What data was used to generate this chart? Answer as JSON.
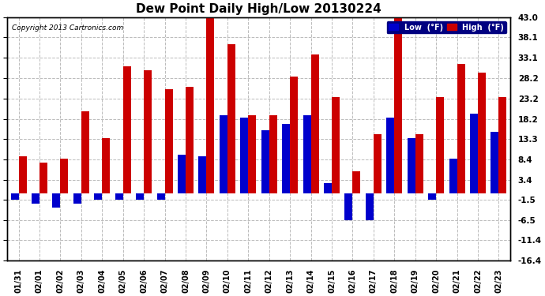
{
  "title": "Dew Point Daily High/Low 20130224",
  "copyright": "Copyright 2013 Cartronics.com",
  "ylabel_right_ticks": [
    43.0,
    38.1,
    33.1,
    28.2,
    23.2,
    18.2,
    13.3,
    8.4,
    3.4,
    -1.5,
    -6.5,
    -11.4,
    -16.4
  ],
  "dates": [
    "01/31",
    "02/01",
    "02/02",
    "02/03",
    "02/04",
    "02/05",
    "02/06",
    "02/07",
    "02/08",
    "02/09",
    "02/10",
    "02/11",
    "02/12",
    "02/13",
    "02/14",
    "02/15",
    "02/16",
    "02/17",
    "02/18",
    "02/19",
    "02/20",
    "02/21",
    "02/22",
    "02/23"
  ],
  "high_values": [
    9.0,
    7.5,
    8.5,
    20.0,
    13.5,
    31.0,
    30.0,
    25.5,
    26.0,
    43.0,
    36.5,
    19.0,
    19.0,
    28.5,
    34.0,
    23.5,
    5.5,
    14.5,
    43.5,
    14.5,
    23.5,
    31.5,
    29.5,
    23.5
  ],
  "low_values": [
    -1.5,
    -2.5,
    -3.5,
    -2.5,
    -1.5,
    -1.5,
    -1.5,
    -1.5,
    9.5,
    9.0,
    19.0,
    18.5,
    15.5,
    17.0,
    19.0,
    2.5,
    -6.5,
    -6.5,
    18.5,
    13.5,
    -1.5,
    8.5,
    19.5,
    15.0
  ],
  "high_color": "#cc0000",
  "low_color": "#0000cc",
  "background_color": "#ffffff",
  "grid_color": "#bbbbbb",
  "ylim": [
    -16.4,
    43.0
  ],
  "title_fontsize": 11,
  "legend_low_label": "Low  (°F)",
  "legend_high_label": "High  (°F)"
}
